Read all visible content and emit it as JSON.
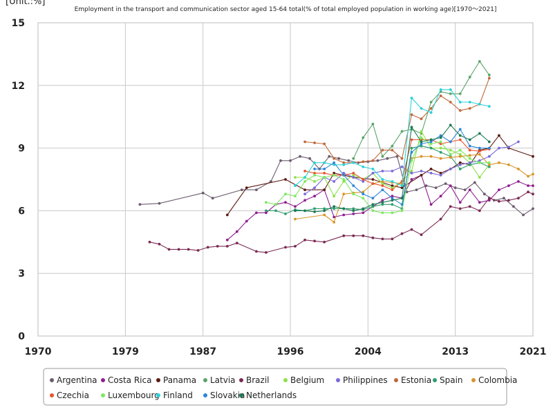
{
  "chart_data": {
    "type": "line",
    "title": "Employment in the transport and communication sector aged 15-64 total(% of total employed population in working age)[1970〜2021]",
    "ylabel": "[Unit.:%]",
    "xlabel": "",
    "xlim": [
      1970,
      2021
    ],
    "ylim": [
      0,
      15
    ],
    "x_ticks": [
      1970,
      1979,
      1987,
      1996,
      2004,
      2013,
      2021
    ],
    "y_ticks": [
      0,
      3,
      6,
      9,
      12,
      15
    ],
    "grid": true,
    "legend_position": "bottom",
    "series": [
      {
        "name": "Argentina",
        "color": "#6b5b6e",
        "x": [
          1980.5,
          1982.5,
          1987,
          1988,
          1991,
          1992.5,
          1994,
          1995,
          1996,
          1997,
          1998,
          1999,
          2000,
          2001,
          2002,
          2003,
          2004,
          2005,
          2006,
          2007,
          2008,
          2009,
          2010,
          2011,
          2012,
          2013,
          2014,
          2015,
          2016,
          2017,
          2018,
          2019,
          2020,
          2021
        ],
        "y": [
          6.3,
          6.35,
          6.85,
          6.6,
          7.0,
          7.0,
          7.4,
          8.4,
          8.4,
          8.6,
          8.5,
          8.0,
          8.6,
          8.5,
          8.4,
          8.3,
          8.35,
          8.4,
          8.5,
          8.6,
          6.9,
          7.0,
          7.2,
          7.1,
          7.3,
          7.1,
          7.0,
          7.35,
          6.8,
          6.5,
          6.6,
          6.2,
          5.8,
          6.1
        ]
      },
      {
        "name": "Costa Rica",
        "color": "#8e1f8e",
        "x": [
          1989.5,
          1990.5,
          1991.5,
          1992.5,
          1993.5,
          1994.5,
          1995.5,
          1996.5,
          1997.5,
          1998.5,
          1999.5,
          2000.5,
          2001.5,
          2002.5,
          2003.5,
          2004.5,
          2005.5,
          2006.5,
          2007.5,
          2008.5,
          2009.5,
          2010.5,
          2011.5,
          2012.5,
          2013.5,
          2014.5,
          2015.5,
          2016.5,
          2017.5,
          2018.5,
          2019.5,
          2020.5,
          2021
        ],
        "y": [
          4.6,
          5.0,
          5.5,
          5.9,
          5.9,
          6.3,
          6.4,
          6.2,
          6.5,
          6.7,
          7.0,
          5.7,
          5.8,
          5.85,
          5.9,
          6.2,
          6.5,
          6.7,
          6.6,
          7.5,
          7.7,
          6.3,
          6.7,
          7.2,
          6.4,
          7.0,
          6.4,
          6.5,
          7.0,
          7.2,
          7.4,
          7.2,
          7.2
        ]
      },
      {
        "name": "Panama",
        "color": "#5c1a12",
        "x": [
          1989.5,
          1991.5,
          1995.5,
          1997.5,
          1999.5,
          2000.5,
          2002.5,
          2004.5,
          2006.5,
          2007.5,
          2009.5,
          2010.5,
          2011.5,
          2012.5,
          2013.5,
          2014.5,
          2015.5,
          2016.5,
          2017.5,
          2018.5,
          2021
        ],
        "y": [
          5.8,
          7.1,
          7.5,
          7.0,
          7.0,
          7.8,
          7.6,
          7.5,
          7.2,
          7.1,
          7.7,
          8.0,
          7.8,
          8.0,
          8.3,
          8.2,
          8.9,
          9.0,
          9.6,
          9.0,
          8.6
        ]
      },
      {
        "name": "Latvia",
        "color": "#5aa469",
        "x": [
          2002.5,
          2003.5,
          2004.5,
          2005.5,
          2006.5,
          2007.5,
          2008.5,
          2009.5,
          2010.5,
          2011.5,
          2012.5,
          2013.5,
          2014.5,
          2015.5,
          2016.5
        ],
        "y": [
          8.5,
          9.5,
          10.15,
          8.6,
          9.1,
          9.8,
          9.9,
          9.7,
          11.2,
          11.7,
          11.6,
          11.6,
          12.4,
          13.15,
          12.5
        ]
      },
      {
        "name": "Brazil",
        "color": "#7b2a52",
        "x": [
          1981.5,
          1982.5,
          1983.5,
          1984.5,
          1985.5,
          1986.5,
          1987.5,
          1988.5,
          1989.5,
          1990.5,
          1992.5,
          1993.5,
          1995.5,
          1996.5,
          1997.5,
          1998.5,
          1999.5,
          2001.5,
          2002.5,
          2003.5,
          2004.5,
          2005.5,
          2006.5,
          2007.5,
          2008.5,
          2009.5,
          2011.5,
          2012.5,
          2013.5,
          2014.5,
          2015.5,
          2016.5,
          2017.5,
          2018.5,
          2019.5,
          2020.5,
          2021
        ],
        "y": [
          4.5,
          4.4,
          4.15,
          4.15,
          4.15,
          4.1,
          4.25,
          4.3,
          4.3,
          4.45,
          4.05,
          4.0,
          4.25,
          4.3,
          4.6,
          4.55,
          4.5,
          4.8,
          4.8,
          4.8,
          4.7,
          4.65,
          4.65,
          4.9,
          5.1,
          4.85,
          5.6,
          6.2,
          6.1,
          6.2,
          6.0,
          6.6,
          6.45,
          6.5,
          6.6,
          6.9,
          6.8
        ]
      },
      {
        "name": "Belgium",
        "color": "#8ee04a",
        "x": [
          1996.5,
          1997.5,
          1998.5,
          1999.5,
          2000.5,
          2001.5,
          2002.5,
          2003.5,
          2004.5,
          2005.5,
          2006.5,
          2007.5,
          2008.5,
          2009.5,
          2010.5,
          2011.5,
          2012.5,
          2013.5,
          2014.5,
          2015.5,
          2016.5
        ],
        "y": [
          7.6,
          7.6,
          7.4,
          7.6,
          6.7,
          7.4,
          7.7,
          7.5,
          7.8,
          7.3,
          7.1,
          7.4,
          7.9,
          9.8,
          9.0,
          9.0,
          8.9,
          8.7,
          8.3,
          7.6,
          8.2
        ]
      },
      {
        "name": "Philippines",
        "color": "#7a6bd8",
        "x": [
          1997.5,
          1998.5,
          1999.5,
          2000.5,
          2001.5,
          2002.5,
          2003.5,
          2004.5,
          2005.5,
          2006.5,
          2007.5,
          2008.5,
          2009.5,
          2010.5,
          2011.5,
          2012.5,
          2013.5,
          2014.5,
          2015.5,
          2016.5,
          2017.5,
          2018.5,
          2019.5
        ],
        "y": [
          6.8,
          7.1,
          7.6,
          7.4,
          7.8,
          7.6,
          7.4,
          7.8,
          7.9,
          7.9,
          8.1,
          7.8,
          7.9,
          7.8,
          7.7,
          8.0,
          8.2,
          8.3,
          8.4,
          8.6,
          9.0,
          9.05,
          9.3
        ]
      },
      {
        "name": "Estonia",
        "color": "#c0683a",
        "x": [
          1997.5,
          1998.5,
          1999.5,
          2000.5,
          2001.5,
          2002.5,
          2003.5,
          2004.5,
          2005.5,
          2006.5,
          2007.5,
          2008.5,
          2009.5,
          2010.5,
          2011.5,
          2012.5,
          2013.5,
          2014.5,
          2015.5,
          2016.5
        ],
        "y": [
          9.3,
          9.25,
          9.2,
          8.5,
          8.3,
          8.3,
          8.35,
          8.4,
          8.9,
          8.9,
          8.5,
          10.6,
          10.4,
          10.9,
          11.5,
          11.2,
          10.8,
          10.9,
          11.1,
          12.35
        ]
      },
      {
        "name": "Spain",
        "color": "#2f9c70",
        "x": [
          1993.5,
          1994.5,
          1995.5,
          1996.5,
          1997.5,
          1998.5,
          1999.5,
          2000.5,
          2001.5,
          2002.5,
          2003.5,
          2004.5,
          2005.5,
          2006.5,
          2007.5,
          2008.5,
          2009.5,
          2010.5,
          2011.5,
          2012.5,
          2013.5,
          2014.5,
          2015.5,
          2016.5
        ],
        "y": [
          6.0,
          6.0,
          5.85,
          6.05,
          6.0,
          6.1,
          6.1,
          6.1,
          6.1,
          6.1,
          6.05,
          6.2,
          6.3,
          6.3,
          6.1,
          9.0,
          9.1,
          9.0,
          8.8,
          8.6,
          8.0,
          8.2,
          8.3,
          8.1
        ]
      },
      {
        "name": "Colombia",
        "color": "#d8952a",
        "x": [
          1996.5,
          1999.5,
          2000.5,
          2001.5,
          2002.5,
          2003.5,
          2004.5,
          2005.5,
          2006.5,
          2007.5,
          2008.5,
          2009.5,
          2010.5,
          2011.5,
          2012.5,
          2013.5,
          2014.5,
          2015.5,
          2016.5,
          2017.5,
          2018.5,
          2019.5,
          2020.5,
          2021
        ],
        "y": [
          5.6,
          5.8,
          5.45,
          6.8,
          6.85,
          6.9,
          7.3,
          7.4,
          7.35,
          7.3,
          8.5,
          8.6,
          8.6,
          8.5,
          8.55,
          8.6,
          8.65,
          8.7,
          8.2,
          8.3,
          8.2,
          8.0,
          7.65,
          7.75
        ]
      },
      {
        "name": "Czechia",
        "color": "#e8552f",
        "x": [
          1997.5,
          1998.5,
          1999.5,
          2000.5,
          2001.5,
          2002.5,
          2003.5,
          2004.5,
          2005.5,
          2006.5,
          2007.5,
          2008.5,
          2009.5,
          2010.5,
          2011.5,
          2012.5,
          2013.5,
          2014.5,
          2015.5,
          2016.5
        ],
        "y": [
          7.9,
          7.8,
          7.8,
          7.7,
          7.7,
          7.8,
          7.5,
          7.3,
          7.2,
          7.0,
          7.4,
          9.4,
          9.4,
          9.4,
          9.2,
          9.3,
          9.4,
          8.9,
          8.85,
          8.95
        ]
      },
      {
        "name": "Luxembourg",
        "color": "#7ee864",
        "x": [
          1993.5,
          1994.5,
          1995.5,
          1996.5,
          1997.5,
          1998.5,
          1999.5,
          2000.5,
          2001.5,
          2002.5,
          2003.5,
          2004.5,
          2005.5,
          2006.5,
          2007.5,
          2008.5,
          2009.5,
          2010.5,
          2011.5,
          2012.5,
          2013.5,
          2014.5,
          2015.5,
          2016.5
        ],
        "y": [
          6.4,
          6.3,
          6.8,
          6.7,
          7.4,
          7.7,
          7.6,
          7.7,
          7.5,
          6.8,
          6.6,
          6.0,
          5.9,
          5.9,
          6.0,
          8.4,
          9.5,
          9.2,
          9.3,
          8.7,
          8.9,
          8.5,
          8.3,
          8.3
        ]
      },
      {
        "name": "Finland",
        "color": "#2bd1d8",
        "x": [
          1996.5,
          1997.5,
          1998.5,
          1999.5,
          2000.5,
          2001.5,
          2002.5,
          2003.5,
          2004.5,
          2005.5,
          2006.5,
          2007.5,
          2008.5,
          2009.5,
          2010.5,
          2011.5,
          2012.5,
          2013.5,
          2014.5,
          2015.5,
          2016.5
        ],
        "y": [
          7.2,
          7.6,
          8.3,
          8.3,
          8.2,
          8.2,
          8.3,
          8.1,
          8.0,
          7.5,
          7.4,
          7.2,
          11.4,
          10.9,
          10.7,
          11.8,
          11.8,
          11.2,
          11.2,
          11.1,
          11.0
        ]
      },
      {
        "name": "Slovakia",
        "color": "#2f86d8",
        "x": [
          1998.5,
          1999.5,
          2000.5,
          2001.5,
          2002.5,
          2003.5,
          2004.5,
          2005.5,
          2006.5,
          2007.5,
          2008.5,
          2009.5,
          2010.5,
          2011.5,
          2012.5,
          2013.5,
          2014.5,
          2015.5,
          2016.5
        ],
        "y": [
          8.0,
          8.0,
          8.3,
          7.7,
          7.2,
          6.8,
          6.6,
          7.0,
          6.6,
          6.3,
          8.8,
          9.2,
          9.3,
          9.6,
          9.3,
          9.9,
          9.1,
          9.0,
          9.0
        ]
      },
      {
        "name": "Netherlands",
        "color": "#1d7a52",
        "x": [
          1996.5,
          1997.5,
          1998.5,
          1999.5,
          2000.5,
          2001.5,
          2002.5,
          2003.5,
          2004.5,
          2005.5,
          2006.5,
          2007.5,
          2008.5,
          2009.5,
          2010.5,
          2011.5,
          2012.5,
          2013.5,
          2014.5,
          2015.5,
          2016.5
        ],
        "y": [
          6.0,
          6.0,
          5.95,
          6.0,
          6.2,
          6.1,
          6.0,
          6.1,
          6.3,
          6.4,
          6.5,
          6.6,
          10.0,
          9.3,
          9.4,
          9.5,
          10.1,
          9.6,
          9.4,
          9.7,
          9.3
        ]
      }
    ]
  }
}
